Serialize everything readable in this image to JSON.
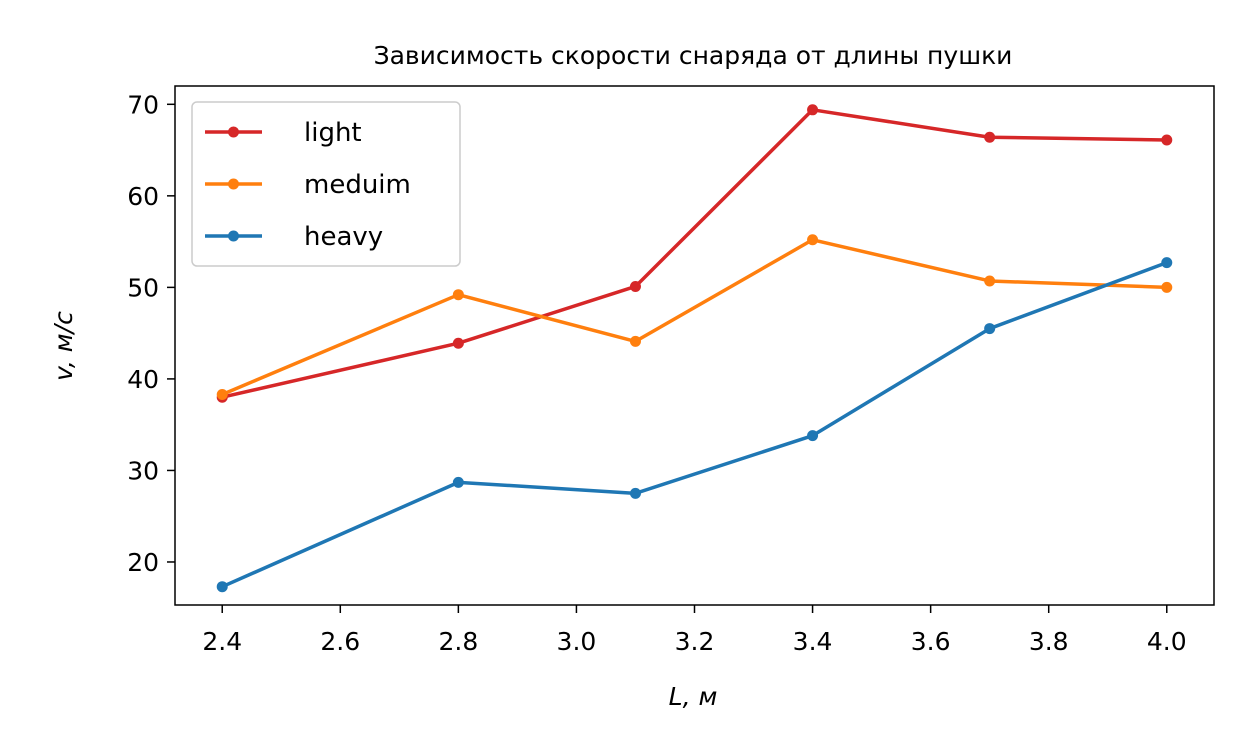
{
  "chart_data": {
    "type": "line",
    "title": "Зависимость скорости снаряда от длины пушки",
    "xlabel": "L, м",
    "ylabel": "v, м/с",
    "xlim": [
      2.32,
      4.08
    ],
    "ylim": [
      15.3,
      72.0
    ],
    "xticks": [
      "2.4",
      "2.6",
      "2.8",
      "3.0",
      "3.2",
      "3.4",
      "3.6",
      "3.8",
      "4.0"
    ],
    "yticks": [
      "20",
      "30",
      "40",
      "50",
      "60",
      "70"
    ],
    "x": [
      2.4,
      2.8,
      3.1,
      3.4,
      3.7,
      4.0
    ],
    "grid": false,
    "legend_position": "top-left",
    "series": [
      {
        "name": "light",
        "color": "#d62728",
        "values": [
          38.0,
          43.9,
          50.1,
          69.4,
          66.4,
          66.1
        ]
      },
      {
        "name": "meduim",
        "color": "#ff7f0e",
        "values": [
          38.3,
          49.2,
          44.1,
          55.2,
          50.7,
          50.0
        ]
      },
      {
        "name": "heavy",
        "color": "#1f77b4",
        "values": [
          17.3,
          28.7,
          27.5,
          33.8,
          45.5,
          52.7
        ]
      }
    ]
  }
}
